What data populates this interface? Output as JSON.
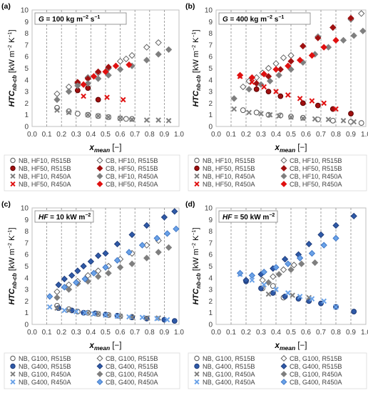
{
  "chart_data": [
    {
      "type": "scatter",
      "panel_label": "(a)",
      "condition": {
        "symbol": "G",
        "rest": " = 100 kg m",
        "sup1": "−2",
        "mid": " s",
        "sup2": "−1"
      },
      "ylabel": {
        "main": "HTC",
        "sub": "nb-cb",
        "units": " [kW m",
        "sup": "−2",
        "units2": " K",
        "sup2": "−1",
        "close": "]"
      },
      "xlabel": {
        "main": "x",
        "sub": "mean",
        "rest": " [−]"
      },
      "xlim": [
        0,
        1
      ],
      "ylim": [
        0,
        10
      ],
      "xticks": [
        "0.0",
        "0.1",
        "0.2",
        "0.3",
        "0.4",
        "0.5",
        "0.6",
        "0.7",
        "0.8",
        "0.9",
        "1.0"
      ],
      "yticks": [
        "0",
        "1",
        "2",
        "3",
        "4",
        "5",
        "6",
        "7",
        "8",
        "9",
        "10"
      ],
      "grid": "vertical-dashed",
      "legend_position": "bottom",
      "series": [
        {
          "name": "NB, HF10, R515B",
          "marker": "circle-open",
          "x": [
            0.17,
            0.25,
            0.31,
            0.38,
            0.45,
            0.52,
            0.6,
            0.64,
            0.68
          ],
          "y": [
            1.6,
            1.3,
            1.1,
            1.0,
            0.9,
            0.8,
            0.7,
            0.65,
            0.65
          ]
        },
        {
          "name": "CB, HF10, R515B",
          "marker": "diamond-open",
          "x": [
            0.17,
            0.25,
            0.31,
            0.38,
            0.45,
            0.52,
            0.6,
            0.64,
            0.68,
            0.78,
            0.86
          ],
          "y": [
            2.8,
            3.4,
            3.7,
            4.2,
            4.6,
            5.0,
            5.6,
            5.8,
            6.1,
            6.8,
            7.2
          ]
        },
        {
          "name": "NB, HF50, R515B",
          "marker": "circle-filled-darkred",
          "x": [
            0.31,
            0.38,
            0.45
          ],
          "y": [
            3.1,
            3.3,
            2.3
          ]
        },
        {
          "name": "CB, HF50, R515B",
          "marker": "diamond-filled-darkred",
          "x": [
            0.31,
            0.38,
            0.45,
            0.52
          ],
          "y": [
            3.8,
            4.1,
            4.7,
            5.1
          ]
        },
        {
          "name": "NB, HF10, R450A",
          "marker": "x-gray",
          "x": [
            0.17,
            0.25,
            0.38,
            0.45,
            0.52,
            0.6,
            0.68,
            0.78,
            0.86,
            0.93
          ],
          "y": [
            1.4,
            1.2,
            1.0,
            0.9,
            0.8,
            0.7,
            0.6,
            0.55,
            0.55,
            0.5
          ]
        },
        {
          "name": "CB, HF10, R450A",
          "marker": "diamond-filled-gray",
          "x": [
            0.17,
            0.25,
            0.31,
            0.38,
            0.45,
            0.52,
            0.6,
            0.68,
            0.78,
            0.86,
            0.93
          ],
          "y": [
            2.3,
            3.0,
            3.5,
            3.7,
            4.1,
            4.4,
            4.9,
            5.2,
            5.7,
            6.2,
            6.6
          ]
        },
        {
          "name": "NB, HF50, R450A",
          "marker": "x-red",
          "x": [
            0.35,
            0.51,
            0.62
          ],
          "y": [
            2.6,
            2.5,
            2.3
          ]
        },
        {
          "name": "CB, HF50, R450A",
          "marker": "diamond-filled-red",
          "x": [
            0.35,
            0.42,
            0.5,
            0.57,
            0.66
          ],
          "y": [
            3.6,
            4.3,
            4.7,
            5.2,
            5.3
          ]
        }
      ]
    },
    {
      "type": "scatter",
      "panel_label": "(b)",
      "condition": {
        "symbol": "G",
        "rest": " = 400 kg m",
        "sup1": "−2",
        "mid": " s",
        "sup2": "−1"
      },
      "ylabel": {
        "main": "HTC",
        "sub": "nb-cb",
        "units": " [kW m",
        "sup": "−2",
        "units2": " K",
        "sup2": "−1",
        "close": "]"
      },
      "xlabel": {
        "main": "x",
        "sub": "mean",
        "rest": " [−]"
      },
      "xlim": [
        0,
        1
      ],
      "ylim": [
        0,
        10
      ],
      "xticks": [
        "0.0",
        "0.1",
        "0.2",
        "0.3",
        "0.4",
        "0.5",
        "0.6",
        "0.7",
        "0.8",
        "0.9",
        "1.0"
      ],
      "yticks": [
        "0",
        "1",
        "2",
        "3",
        "4",
        "5",
        "6",
        "7",
        "8",
        "9",
        "10"
      ],
      "grid": "vertical-dashed",
      "legend_position": "bottom",
      "series": [
        {
          "name": "NB, HF10, R515B",
          "marker": "circle-open",
          "x": [
            0.18,
            0.27,
            0.35,
            0.43,
            0.5,
            0.58,
            0.68,
            0.78,
            0.9,
            0.97
          ],
          "y": [
            1.4,
            1.2,
            1.0,
            0.95,
            0.85,
            0.75,
            0.6,
            0.5,
            0.4,
            0.3
          ]
        },
        {
          "name": "CB, HF10, R515B",
          "marker": "diamond-open",
          "x": [
            0.18,
            0.22,
            0.27,
            0.31,
            0.35,
            0.4,
            0.45,
            0.5,
            0.58,
            0.68,
            0.78,
            0.9,
            0.97
          ],
          "y": [
            3.4,
            3.9,
            4.2,
            4.6,
            5.0,
            5.4,
            5.9,
            6.1,
            6.9,
            7.7,
            8.5,
            9.2,
            9.7
          ]
        },
        {
          "name": "NB, HF50, R515B",
          "marker": "circle-filled-darkred",
          "x": [
            0.27,
            0.35,
            0.43,
            0.58,
            0.68,
            0.78,
            0.9
          ],
          "y": [
            3.2,
            3.0,
            2.6,
            2.0,
            1.8,
            1.5,
            1.1
          ]
        },
        {
          "name": "CB, HF50, R515B",
          "marker": "diamond-filled-darkred",
          "x": [
            0.27,
            0.35,
            0.43,
            0.5,
            0.58,
            0.68,
            0.78,
            0.9
          ],
          "y": [
            3.7,
            4.3,
            4.9,
            5.6,
            6.9,
            7.6,
            8.5,
            9.3
          ]
        },
        {
          "name": "NB, HF10, R450A",
          "marker": "x-gray",
          "x": [
            0.12,
            0.22,
            0.3,
            0.36,
            0.42,
            0.5,
            0.58,
            0.66,
            0.75,
            0.85,
            0.92
          ],
          "y": [
            1.5,
            1.2,
            1.1,
            1.0,
            0.9,
            0.8,
            0.7,
            0.65,
            0.6,
            0.5,
            0.4
          ]
        },
        {
          "name": "CB, HF10, R450A",
          "marker": "diamond-filled-gray",
          "x": [
            0.12,
            0.22,
            0.3,
            0.36,
            0.42,
            0.5,
            0.58,
            0.66,
            0.75,
            0.85,
            0.92,
            0.98
          ],
          "y": [
            2.4,
            3.2,
            3.6,
            3.9,
            4.4,
            4.9,
            5.5,
            6.2,
            6.8,
            7.4,
            7.8,
            8.2
          ]
        },
        {
          "name": "NB, HF50, R450A",
          "marker": "x-red",
          "x": [
            0.16,
            0.24,
            0.32,
            0.4,
            0.48,
            0.56,
            0.64,
            0.72,
            0.8
          ],
          "y": [
            4.3,
            3.8,
            3.4,
            3.0,
            2.7,
            2.4,
            2.2,
            2.0,
            1.5
          ]
        },
        {
          "name": "CB, HF50, R450A",
          "marker": "diamond-filled-red",
          "x": [
            0.16,
            0.24,
            0.32,
            0.4,
            0.48,
            0.56,
            0.64,
            0.72,
            0.8
          ],
          "y": [
            4.4,
            4.2,
            4.5,
            4.9,
            5.2,
            5.7,
            6.1,
            6.8,
            7.4
          ]
        }
      ]
    },
    {
      "type": "scatter",
      "panel_label": "(c)",
      "condition": {
        "symbol": "HF",
        "rest": " = 10 kW m",
        "sup1": "−2",
        "mid": "",
        "sup2": ""
      },
      "ylabel": {
        "main": "HTC",
        "sub": "nb-cb",
        "units": " [kW m",
        "sup": "−2",
        "units2": " K",
        "sup2": "−1",
        "close": "]"
      },
      "xlabel": {
        "main": "x",
        "sub": "mean",
        "rest": " [−]"
      },
      "xlim": [
        0,
        1
      ],
      "ylim": [
        0,
        10
      ],
      "xticks": [
        "0.0",
        "0.1",
        "0.2",
        "0.3",
        "0.4",
        "0.5",
        "0.6",
        "0.7",
        "0.8",
        "0.9",
        "1.0"
      ],
      "yticks": [
        "0",
        "1",
        "2",
        "3",
        "4",
        "5",
        "6",
        "7",
        "8",
        "9",
        "10"
      ],
      "grid": "vertical-dashed",
      "legend_position": "bottom",
      "series": [
        {
          "name": "NB, G100, R515B",
          "marker": "circle-open",
          "x": [
            0.17,
            0.25,
            0.31,
            0.38,
            0.45,
            0.52,
            0.6,
            0.68
          ],
          "y": [
            1.6,
            1.3,
            1.1,
            1.0,
            0.9,
            0.8,
            0.7,
            0.65
          ]
        },
        {
          "name": "CB, G100, R515B",
          "marker": "diamond-open",
          "x": [
            0.17,
            0.25,
            0.31,
            0.38,
            0.45,
            0.52,
            0.6,
            0.68,
            0.78,
            0.86
          ],
          "y": [
            2.8,
            3.4,
            3.7,
            4.2,
            4.6,
            5.0,
            5.6,
            6.1,
            6.8,
            7.2
          ]
        },
        {
          "name": "NB, G400, R515B",
          "marker": "circle-filled-blue",
          "x": [
            0.18,
            0.27,
            0.35,
            0.43,
            0.5,
            0.58,
            0.68,
            0.78,
            0.9,
            0.97
          ],
          "y": [
            1.4,
            1.2,
            1.0,
            0.95,
            0.85,
            0.75,
            0.6,
            0.5,
            0.4,
            0.3
          ]
        },
        {
          "name": "CB, G400, R515B",
          "marker": "diamond-filled-blue",
          "x": [
            0.18,
            0.22,
            0.27,
            0.31,
            0.35,
            0.4,
            0.45,
            0.5,
            0.58,
            0.68,
            0.78,
            0.9,
            0.97
          ],
          "y": [
            3.4,
            3.9,
            4.2,
            4.6,
            5.0,
            5.4,
            5.9,
            6.1,
            6.9,
            7.7,
            8.5,
            9.2,
            9.7
          ]
        },
        {
          "name": "NB, G100, R450A",
          "marker": "x-gray",
          "x": [
            0.17,
            0.25,
            0.38,
            0.45,
            0.52,
            0.6,
            0.68,
            0.78,
            0.86
          ],
          "y": [
            1.4,
            1.2,
            1.0,
            0.9,
            0.8,
            0.7,
            0.6,
            0.55,
            0.55
          ]
        },
        {
          "name": "CB, G100, R450A",
          "marker": "diamond-filled-gray",
          "x": [
            0.17,
            0.25,
            0.31,
            0.38,
            0.45,
            0.52,
            0.6,
            0.68,
            0.78,
            0.86,
            0.93
          ],
          "y": [
            2.3,
            3.0,
            3.5,
            3.7,
            4.1,
            4.4,
            4.9,
            5.2,
            5.7,
            6.2,
            6.6
          ]
        },
        {
          "name": "NB, G400, R450A",
          "marker": "x-lightblue",
          "x": [
            0.12,
            0.22,
            0.3,
            0.36,
            0.42,
            0.5,
            0.58,
            0.66,
            0.75,
            0.85,
            0.92
          ],
          "y": [
            1.5,
            1.2,
            1.1,
            1.0,
            0.9,
            0.8,
            0.7,
            0.65,
            0.6,
            0.5,
            0.4
          ]
        },
        {
          "name": "CB, G400, R450A",
          "marker": "diamond-filled-lightblue",
          "x": [
            0.12,
            0.22,
            0.3,
            0.36,
            0.42,
            0.5,
            0.58,
            0.66,
            0.75,
            0.85,
            0.92,
            0.98
          ],
          "y": [
            2.4,
            3.2,
            3.6,
            3.9,
            4.4,
            4.9,
            5.5,
            6.2,
            6.8,
            7.4,
            7.8,
            8.2
          ]
        }
      ]
    },
    {
      "type": "scatter",
      "panel_label": "(d)",
      "condition": {
        "symbol": "HF",
        "rest": " = 50 kW m",
        "sup1": "−2",
        "mid": "",
        "sup2": ""
      },
      "ylabel": {
        "main": "HTC",
        "sub": "nb-cb",
        "units": " [kW m",
        "sup": "−2",
        "units2": " K",
        "sup2": "−1",
        "close": "]"
      },
      "xlabel": {
        "main": "x",
        "sub": "mean",
        "rest": " [−]"
      },
      "xlim": [
        0,
        1
      ],
      "ylim": [
        0,
        10
      ],
      "xticks": [
        "0.0",
        "0.1",
        "0.2",
        "0.3",
        "0.4",
        "0.5",
        "0.6",
        "0.7",
        "0.8",
        "0.9",
        "1.0"
      ],
      "yticks": [
        "0",
        "1",
        "2",
        "3",
        "4",
        "5",
        "6",
        "7",
        "8",
        "9",
        "10"
      ],
      "grid": "vertical-dashed",
      "legend_position": "bottom",
      "series": [
        {
          "name": "NB, G100, R515B",
          "marker": "circle-open",
          "x": [
            0.31,
            0.38,
            0.45
          ],
          "y": [
            3.1,
            3.3,
            2.3
          ]
        },
        {
          "name": "CB, G100, R515B",
          "marker": "diamond-open",
          "x": [
            0.31,
            0.38,
            0.45,
            0.52
          ],
          "y": [
            3.8,
            4.1,
            4.7,
            5.1
          ]
        },
        {
          "name": "NB, G400, R515B",
          "marker": "circle-filled-blue",
          "x": [
            0.2,
            0.3,
            0.38,
            0.46,
            0.55,
            0.62,
            0.7,
            0.8,
            0.92
          ],
          "y": [
            3.7,
            3.1,
            2.7,
            2.4,
            2.2,
            2.0,
            1.8,
            1.5,
            1.1
          ]
        },
        {
          "name": "CB, G400, R515B",
          "marker": "diamond-filled-blue",
          "x": [
            0.2,
            0.3,
            0.38,
            0.46,
            0.55,
            0.62,
            0.7,
            0.8,
            0.92
          ],
          "y": [
            3.8,
            4.3,
            4.8,
            5.6,
            6.0,
            6.9,
            7.7,
            8.5,
            9.3
          ]
        },
        {
          "name": "NB, G100, R450A",
          "marker": "x-gray",
          "x": [
            0.35,
            0.51,
            0.62
          ],
          "y": [
            2.6,
            2.5,
            2.3
          ]
        },
        {
          "name": "CB, G100, R450A",
          "marker": "diamond-filled-gray",
          "x": [
            0.35,
            0.42,
            0.5,
            0.57,
            0.66
          ],
          "y": [
            3.6,
            4.3,
            4.7,
            5.2,
            5.3
          ]
        },
        {
          "name": "NB, G400, R450A",
          "marker": "x-lightblue",
          "x": [
            0.16,
            0.24,
            0.32,
            0.4,
            0.48,
            0.56,
            0.64,
            0.72,
            0.8
          ],
          "y": [
            4.3,
            3.8,
            3.4,
            3.0,
            2.7,
            2.4,
            2.2,
            2.0,
            1.5
          ]
        },
        {
          "name": "CB, G400, R450A",
          "marker": "diamond-filled-lightblue",
          "x": [
            0.16,
            0.24,
            0.32,
            0.4,
            0.48,
            0.56,
            0.64,
            0.72,
            0.8
          ],
          "y": [
            4.4,
            4.2,
            4.5,
            4.9,
            5.2,
            5.7,
            6.1,
            6.8,
            7.4
          ]
        }
      ]
    }
  ],
  "marker_colors": {
    "open_edge": "#555555",
    "darkred": "#a01010",
    "red": "#e01010",
    "gray": "#7f7f7f",
    "blue": "#2f5aa8",
    "lightblue": "#6aa2e8",
    "blue_edge": "#1d3a78",
    "lightblue_edge": "#3c74c4"
  }
}
